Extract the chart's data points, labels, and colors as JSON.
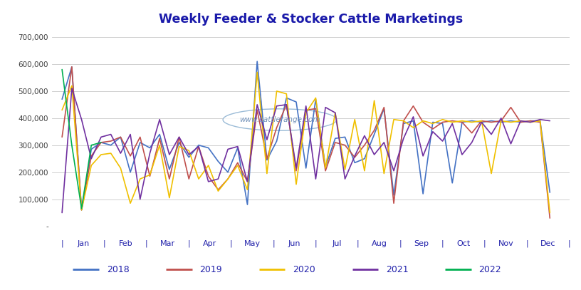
{
  "title": "Weekly Feeder & Stocker Cattle Marketings",
  "title_color": "#1a1aaa",
  "watermark": "www.cattlerange.com",
  "background_color": "#ffffff",
  "plot_bg_color": "#ffffff",
  "grid_color": "#c8c8c8",
  "ylim": [
    0,
    730000
  ],
  "yticks": [
    0,
    100000,
    200000,
    300000,
    400000,
    500000,
    600000,
    700000
  ],
  "ytick_labels": [
    "-",
    "100,000",
    "200,000",
    "300,000",
    "400,000",
    "500,000",
    "600,000",
    "700,000"
  ],
  "months": [
    "Jan",
    "Feb",
    "Mar",
    "Apr",
    "May",
    "Jun",
    "Jul",
    "Aug",
    "Sep",
    "Oct",
    "Nov",
    "Dec"
  ],
  "legend_colors": [
    "#4472c4",
    "#c0504d",
    "#f0c000",
    "#7030a0",
    "#00b050"
  ],
  "legend_labels": [
    "2018",
    "2019",
    "2020",
    "2021",
    "2022"
  ],
  "series": {
    "2018": {
      "color": "#4472c4",
      "data": [
        470000,
        590000,
        60000,
        285000,
        310000,
        300000,
        330000,
        200000,
        310000,
        290000,
        340000,
        210000,
        310000,
        255000,
        300000,
        290000,
        240000,
        200000,
        290000,
        80000,
        610000,
        245000,
        315000,
        475000,
        460000,
        215000,
        470000,
        220000,
        325000,
        330000,
        235000,
        250000,
        340000,
        435000,
        115000,
        380000,
        390000,
        120000,
        385000,
        380000,
        160000,
        385000,
        390000,
        385000,
        390000,
        385000,
        390000,
        385000,
        390000,
        390000,
        125000
      ]
    },
    "2019": {
      "color": "#c0504d",
      "data": [
        330000,
        590000,
        60000,
        260000,
        310000,
        315000,
        330000,
        260000,
        330000,
        185000,
        325000,
        175000,
        330000,
        175000,
        295000,
        185000,
        135000,
        175000,
        235000,
        165000,
        430000,
        250000,
        365000,
        450000,
        205000,
        430000,
        435000,
        205000,
        310000,
        300000,
        255000,
        300000,
        355000,
        440000,
        85000,
        390000,
        445000,
        385000,
        360000,
        385000,
        390000,
        385000,
        345000,
        390000,
        385000,
        390000,
        440000,
        385000,
        390000,
        385000,
        30000
      ]
    },
    "2020": {
      "color": "#f0c000",
      "data": [
        430000,
        520000,
        60000,
        225000,
        265000,
        270000,
        215000,
        85000,
        175000,
        190000,
        300000,
        105000,
        295000,
        280000,
        175000,
        225000,
        130000,
        175000,
        225000,
        135000,
        570000,
        195000,
        500000,
        490000,
        155000,
        420000,
        475000,
        215000,
        420000,
        210000,
        395000,
        205000,
        465000,
        195000,
        395000,
        390000,
        365000,
        390000,
        380000,
        395000,
        385000,
        390000,
        385000,
        390000,
        195000,
        390000,
        385000,
        390000,
        385000,
        390000,
        50000
      ]
    },
    "2021": {
      "color": "#7030a0",
      "data": [
        50000,
        510000,
        395000,
        250000,
        330000,
        340000,
        270000,
        340000,
        100000,
        270000,
        395000,
        265000,
        330000,
        265000,
        295000,
        165000,
        175000,
        285000,
        295000,
        165000,
        450000,
        320000,
        445000,
        450000,
        215000,
        445000,
        175000,
        440000,
        420000,
        175000,
        260000,
        335000,
        265000,
        310000,
        205000,
        325000,
        405000,
        260000,
        350000,
        315000,
        380000,
        265000,
        310000,
        385000,
        340000,
        400000,
        305000,
        390000,
        385000,
        395000,
        390000
      ]
    },
    "2022": {
      "color": "#00b050",
      "data": [
        580000,
        300000,
        65000,
        300000,
        310000
      ]
    }
  }
}
